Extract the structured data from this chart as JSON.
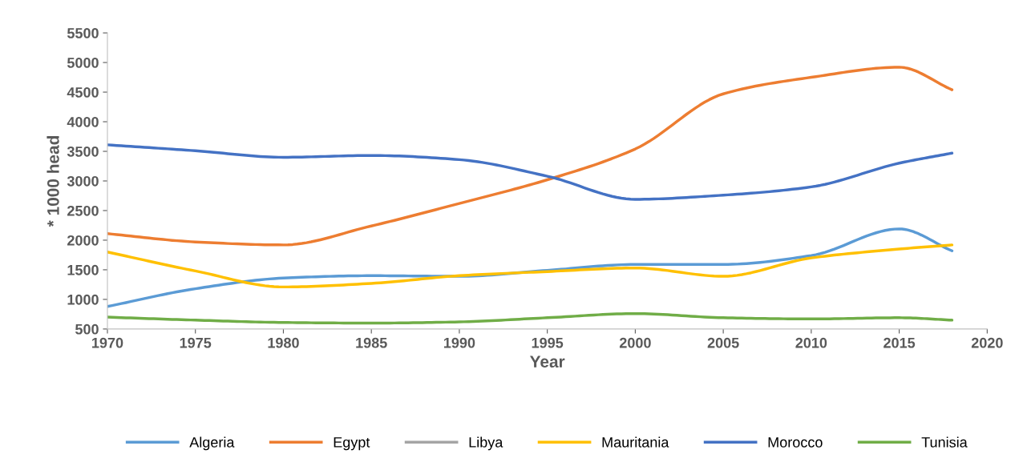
{
  "chart_data": {
    "type": "line",
    "xlabel": "Year",
    "ylabel": "* 1000 head",
    "x": [
      1970,
      1975,
      1980,
      1985,
      1990,
      1995,
      2000,
      2005,
      2010,
      2015,
      2018
    ],
    "xlim": [
      1970,
      2020
    ],
    "xticks": [
      1970,
      1975,
      1980,
      1985,
      1990,
      1995,
      2000,
      2005,
      2010,
      2015,
      2020
    ],
    "ylim": [
      500,
      5500
    ],
    "yticks": [
      500,
      1000,
      1500,
      2000,
      2500,
      3000,
      3500,
      4000,
      4500,
      5000,
      5500
    ],
    "grid": false,
    "legend": "bottom",
    "marker": "none",
    "line_style": "solid",
    "series": [
      {
        "name": "Algeria",
        "color": "#5b9bd5",
        "values": [
          880,
          1180,
          1360,
          1400,
          1390,
          1490,
          1590,
          1590,
          1740,
          2190,
          1820
        ]
      },
      {
        "name": "Egypt",
        "color": "#ed7d31",
        "values": [
          2110,
          1970,
          1920,
          2240,
          2620,
          3020,
          3540,
          4470,
          4750,
          4920,
          4540
        ]
      },
      {
        "name": "Libya",
        "color": "#a5a5a5",
        "values": [
          null,
          null,
          null,
          null,
          null,
          null,
          null,
          null,
          null,
          null,
          null
        ]
      },
      {
        "name": "Mauritania",
        "color": "#ffc000",
        "values": [
          1800,
          1480,
          1210,
          1270,
          1400,
          1470,
          1530,
          1390,
          1700,
          1850,
          1920
        ]
      },
      {
        "name": "Morocco",
        "color": "#4472c4",
        "values": [
          3610,
          3510,
          3400,
          3430,
          3360,
          3080,
          2690,
          2760,
          2900,
          3300,
          3470
        ]
      },
      {
        "name": "Tunisia",
        "color": "#70ad47",
        "values": [
          700,
          650,
          610,
          600,
          620,
          690,
          760,
          690,
          670,
          690,
          650
        ]
      }
    ]
  }
}
